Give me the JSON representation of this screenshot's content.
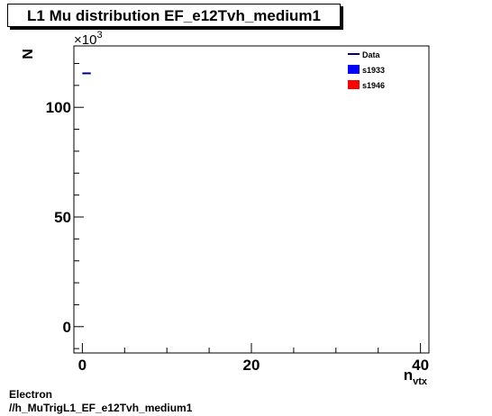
{
  "title": "L1 Mu distribution EF_e12Tvh_medium1",
  "footer": {
    "line1": "Electron",
    "line2": "//h_MuTrigL1_EF_e12Tvh_medium1"
  },
  "chart_data": {
    "type": "scatter",
    "title": "L1 Mu distribution EF_e12Tvh_medium1",
    "xlabel": "n",
    "xlabel_subscript": "vtx",
    "ylabel": "N",
    "y_multiplier_label": "×10",
    "y_multiplier_exponent": "3",
    "xlim": [
      -1,
      41
    ],
    "ylim": [
      -12,
      128
    ],
    "x_ticks": [
      0,
      20,
      40
    ],
    "y_ticks": [
      0,
      50,
      100
    ],
    "grid": false,
    "legend_position": "top-right",
    "series": [
      {
        "name": "Data",
        "style": "line",
        "color": "#00007f",
        "x": [
          0.5
        ],
        "y": [
          115.5
        ]
      },
      {
        "name": "s1933",
        "style": "fill",
        "color": "#0000ff",
        "x": [],
        "y": []
      },
      {
        "name": "s1946",
        "style": "fill",
        "color": "#ff0000",
        "x": [],
        "y": []
      }
    ]
  }
}
